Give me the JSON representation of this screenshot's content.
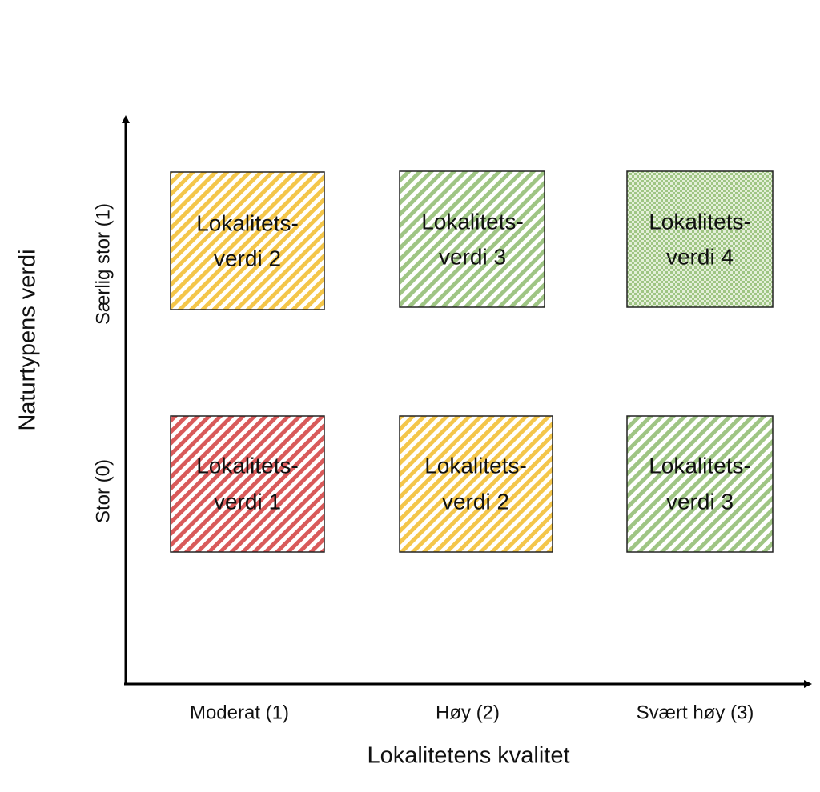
{
  "axes": {
    "y_label": "Naturtypens verdi",
    "x_label": "Lokalitetens kvalitet",
    "y_categories": [
      "Særlig stor (1)",
      "Stor (0)"
    ],
    "x_categories": [
      "Moderat (1)",
      "Høy (2)",
      "Svært høy (3)"
    ]
  },
  "boxes": [
    {
      "lines": [
        "Lokalitets-",
        "verdi 2"
      ]
    },
    {
      "lines": [
        "Lokalitets-",
        "verdi 3"
      ]
    },
    {
      "lines": [
        "Lokalitets-",
        "verdi 4"
      ]
    },
    {
      "lines": [
        "Lokalitets-",
        "verdi 1"
      ]
    },
    {
      "lines": [
        "Lokalitets-",
        "verdi 2"
      ]
    },
    {
      "lines": [
        "Lokalitets-",
        "verdi 3"
      ]
    }
  ]
}
